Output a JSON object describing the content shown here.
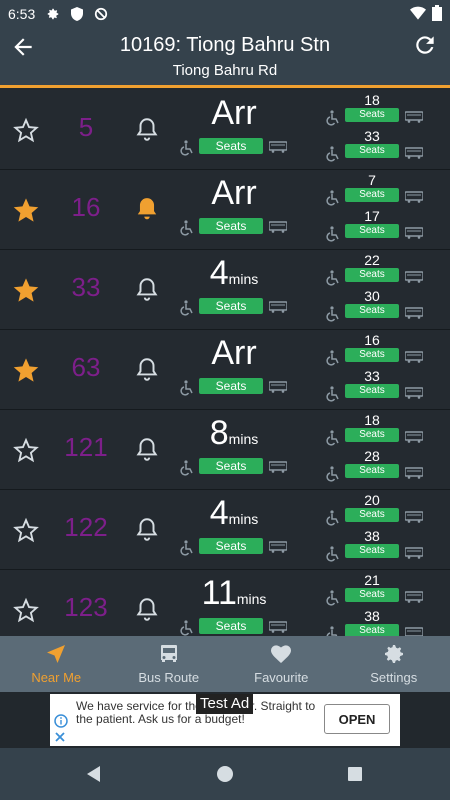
{
  "status_bar": {
    "time": "6:53",
    "icons": [
      "gear-icon",
      "shield-icon",
      "no-sync-icon",
      "wifi-icon",
      "battery-icon"
    ]
  },
  "header": {
    "title": "10169: Tiong Bahru Stn",
    "subtitle": "Tiong Bahru Rd",
    "back_icon": "arrow-left-icon",
    "refresh_icon": "refresh-icon"
  },
  "colors": {
    "accent": "#f0a030",
    "service": "#7d1f8a",
    "seats": "#2cae5a",
    "header": "#35424c",
    "nav": "#5b6b77",
    "row": "#242a30"
  },
  "rows": [
    {
      "service": "5",
      "favourite": false,
      "alert": false,
      "eta": "Arr",
      "eta_unit": "",
      "seats": "Seats",
      "next1": "18",
      "next1_seats": "Seats",
      "next2": "33",
      "next2_seats": "Seats"
    },
    {
      "service": "16",
      "favourite": true,
      "alert": true,
      "eta": "Arr",
      "eta_unit": "",
      "seats": "Seats",
      "next1": "7",
      "next1_seats": "Seats",
      "next2": "17",
      "next2_seats": "Seats"
    },
    {
      "service": "33",
      "favourite": true,
      "alert": false,
      "eta": "4",
      "eta_unit": "mins",
      "seats": "Seats",
      "next1": "22",
      "next1_seats": "Seats",
      "next2": "30",
      "next2_seats": "Seats"
    },
    {
      "service": "63",
      "favourite": true,
      "alert": false,
      "eta": "Arr",
      "eta_unit": "",
      "seats": "Seats",
      "next1": "16",
      "next1_seats": "Seats",
      "next2": "33",
      "next2_seats": "Seats"
    },
    {
      "service": "121",
      "favourite": false,
      "alert": false,
      "eta": "8",
      "eta_unit": "mins",
      "seats": "Seats",
      "next1": "18",
      "next1_seats": "Seats",
      "next2": "28",
      "next2_seats": "Seats"
    },
    {
      "service": "122",
      "favourite": false,
      "alert": false,
      "eta": "4",
      "eta_unit": "mins",
      "seats": "Seats",
      "next1": "20",
      "next1_seats": "Seats",
      "next2": "38",
      "next2_seats": "Seats"
    },
    {
      "service": "123",
      "favourite": false,
      "alert": false,
      "eta": "11",
      "eta_unit": "mins",
      "seats": "Seats",
      "next1": "21",
      "next1_seats": "Seats",
      "next2": "38",
      "next2_seats": "Seats"
    }
  ],
  "bottom_nav": [
    {
      "label": "Near Me",
      "icon": "navigation-arrow-icon",
      "active": true
    },
    {
      "label": "Bus Route",
      "icon": "bus-icon",
      "active": false
    },
    {
      "label": "Favourite",
      "icon": "heart-icon",
      "active": false
    },
    {
      "label": "Settings",
      "icon": "gear-icon",
      "active": false
    }
  ],
  "ad": {
    "tag": "Test Ad",
    "text": "We have service for the customer. Straight to the patient. Ask us for a budget!",
    "button": "OPEN"
  },
  "system_nav": {
    "back_icon": "triangle-back-icon",
    "home_icon": "circle-home-icon",
    "recents_icon": "square-recents-icon"
  }
}
